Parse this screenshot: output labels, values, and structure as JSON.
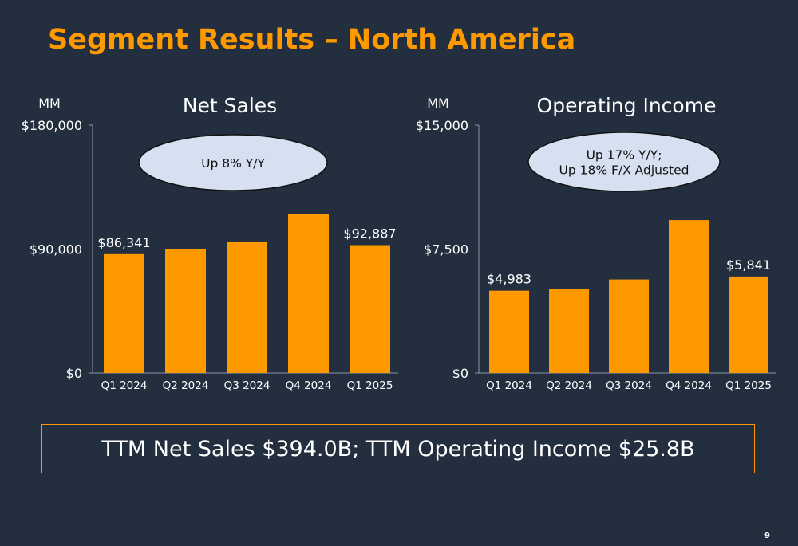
{
  "title": "Segment Results – North America",
  "summary": "TTM Net Sales $394.0B; TTM Operating Income $25.8B",
  "page_number": "9",
  "colors": {
    "background": "#232f3e",
    "bar": "#ff9900",
    "title": "#ff9900",
    "callout_fill": "#d6e0f0"
  },
  "chart_data": [
    {
      "type": "bar",
      "title": "Net Sales",
      "unit_label": "MM",
      "categories": [
        "Q1 2024",
        "Q2 2024",
        "Q3 2024",
        "Q4 2024",
        "Q1 2025"
      ],
      "values": [
        86341,
        90033,
        95537,
        115586,
        92887
      ],
      "data_labels": [
        "$86,341",
        "",
        "",
        "",
        "$92,887"
      ],
      "y_ticks": [
        "$0",
        "$90,000",
        "$180,000"
      ],
      "ylim": [
        0,
        180000
      ],
      "callout": [
        "Up 8% Y/Y"
      ]
    },
    {
      "type": "bar",
      "title": "Operating Income",
      "unit_label": "MM",
      "categories": [
        "Q1 2024",
        "Q2 2024",
        "Q3 2024",
        "Q4 2024",
        "Q1 2025"
      ],
      "values": [
        4983,
        5065,
        5663,
        9256,
        5841
      ],
      "data_labels": [
        "$4,983",
        "",
        "",
        "",
        "$5,841"
      ],
      "y_ticks": [
        "$0",
        "$7,500",
        "$15,000"
      ],
      "ylim": [
        0,
        15000
      ],
      "callout": [
        "Up 17% Y/Y;",
        "Up 18% F/X Adjusted"
      ]
    }
  ]
}
